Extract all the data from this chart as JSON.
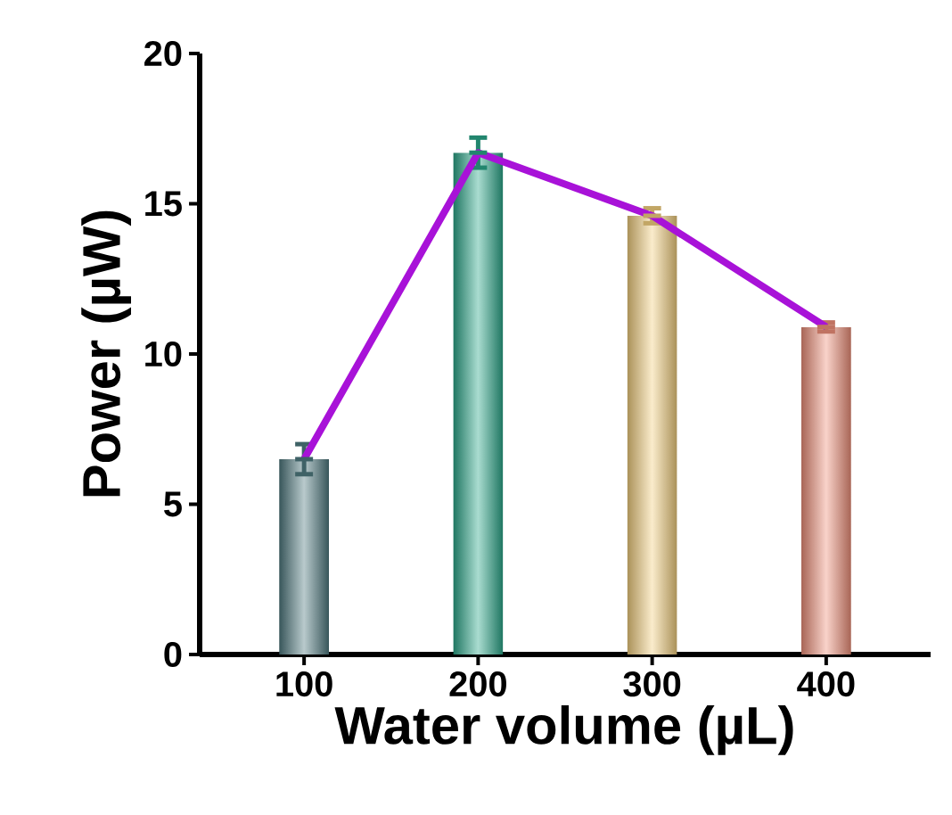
{
  "chart_data": {
    "type": "bar",
    "xlabel": "Water volume (µL)",
    "ylabel": "Power (µW)",
    "categories": [
      "100",
      "200",
      "300",
      "400"
    ],
    "series": [
      {
        "colors": [
          "#4f7a80",
          "#2aa88a",
          "#f3cf7e",
          "#f0907a"
        ],
        "values": [
          6.5,
          16.7,
          14.6,
          10.9
        ],
        "errors": [
          0.5,
          0.5,
          0.25,
          0.15
        ]
      },
      {
        "type": "line",
        "color": "#a812d8",
        "values": [
          6.5,
          16.7,
          14.6,
          10.9
        ]
      }
    ],
    "ylim": [
      0,
      20
    ],
    "yticks": [
      0,
      5,
      10,
      15,
      20
    ],
    "grid": false
  }
}
